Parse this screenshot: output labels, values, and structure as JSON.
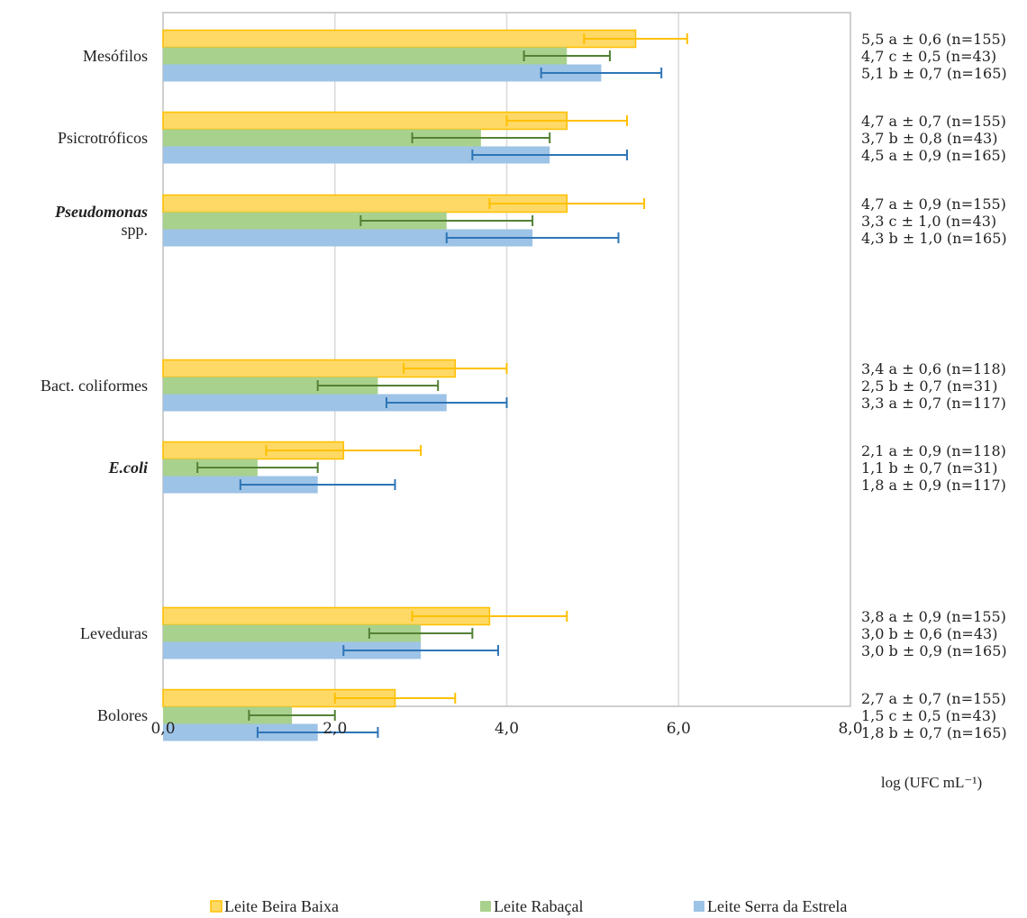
{
  "chart_data": {
    "type": "bar",
    "orientation": "horizontal",
    "xlabel": "log (UFC mL⁻¹)",
    "xlim": [
      0,
      8
    ],
    "xticks": [
      "0,0",
      "2,0",
      "4,0",
      "6,0",
      "8,0"
    ],
    "grid": true,
    "legend_position": "bottom",
    "categories": [
      {
        "label": [
          "Mesófilos"
        ],
        "italic": [
          false
        ]
      },
      {
        "label": [
          "Psicrotróficos"
        ],
        "italic": [
          false
        ]
      },
      {
        "label": [
          "Pseudomonas",
          "spp."
        ],
        "italic": [
          true,
          false
        ]
      },
      {
        "label": [
          "Bact. coliformes"
        ],
        "italic": [
          false
        ]
      },
      {
        "label": [
          "E.coli"
        ],
        "italic": [
          true
        ]
      },
      {
        "label": [
          "Leveduras"
        ],
        "italic": [
          false
        ]
      },
      {
        "label": [
          "Bolores"
        ],
        "italic": [
          false
        ]
      }
    ],
    "series": [
      {
        "name": "Leite Beira Baixa",
        "fill": "#ffd966",
        "stroke": "#ffc000",
        "error_color": "#ffc000",
        "values": [
          5.5,
          4.7,
          4.7,
          3.4,
          2.1,
          3.8,
          2.7
        ],
        "errors": [
          0.6,
          0.7,
          0.9,
          0.6,
          0.9,
          0.9,
          0.7
        ],
        "annotations": [
          "5,5 a ± 0,6 (n=155)",
          "4,7 a ± 0,7 (n=155)",
          "4,7 a ± 0,9 (n=155)",
          "3,4 a ± 0,6 (n=118)",
          "2,1 a ± 0,9 (n=118)",
          "3,8 a ± 0,9 (n=155)",
          "2,7 a ± 0,7 (n=155)"
        ]
      },
      {
        "name": "Leite Rabaçal",
        "fill": "#a9d18e",
        "stroke": "#a9d18e",
        "error_color": "#538135",
        "values": [
          4.7,
          3.7,
          3.3,
          2.5,
          1.1,
          3.0,
          1.5
        ],
        "errors": [
          0.5,
          0.8,
          1.0,
          0.7,
          0.7,
          0.6,
          0.5
        ],
        "annotations": [
          "4,7 c ± 0,5 (n=43)",
          "3,7 b ± 0,8 (n=43)",
          "3,3 c ± 1,0 (n=43)",
          "2,5 b ± 0,7 (n=31)",
          "1,1 b ± 0,7 (n=31)",
          "3,0 b ± 0,6 (n=43)",
          "1,5 c ± 0,5 (n=43)"
        ]
      },
      {
        "name": "Leite Serra da Estrela",
        "fill": "#9dc3e6",
        "stroke": "#9dc3e6",
        "error_color": "#2e75b6",
        "values": [
          5.1,
          4.5,
          4.3,
          3.3,
          1.8,
          3.0,
          1.8
        ],
        "errors": [
          0.7,
          0.9,
          1.0,
          0.7,
          0.9,
          0.9,
          0.7
        ],
        "annotations": [
          "5,1 b ± 0,7 (n=165)",
          "4,5 a ± 0,9 (n=165)",
          "4,3 b ± 1,0 (n=165)",
          "3,3 a ± 0,7 (n=117)",
          "1,8 a ± 0,9 (n=117)",
          "3,0 b ± 0,9 (n=165)",
          "1,8 b ± 0,7 (n=165)"
        ]
      }
    ]
  }
}
